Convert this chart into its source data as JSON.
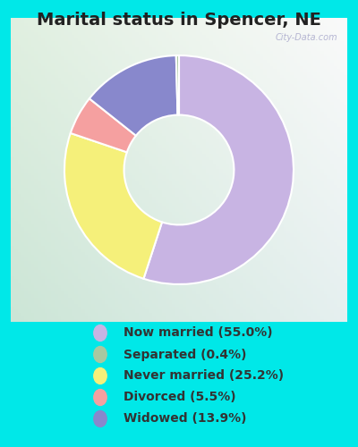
{
  "title": "Marital status in Spencer, NE",
  "slices": [
    55.0,
    0.4,
    25.2,
    5.5,
    13.9
  ],
  "labels": [
    "Now married (55.0%)",
    "Separated (0.4%)",
    "Never married (25.2%)",
    "Divorced (5.5%)",
    "Widowed (13.9%)"
  ],
  "colors": [
    "#c8b4e3",
    "#a8c8a0",
    "#f5f07a",
    "#f5a0a0",
    "#8888cc"
  ],
  "background_cyan": "#00e8e8",
  "title_color": "#222222",
  "legend_text_color": "#333333",
  "watermark": "City-Data.com",
  "donut_width": 0.52,
  "wedge_order": [
    0,
    2,
    3,
    4,
    1
  ],
  "start_angle": 90,
  "title_fontsize": 14,
  "legend_fontsize": 10
}
